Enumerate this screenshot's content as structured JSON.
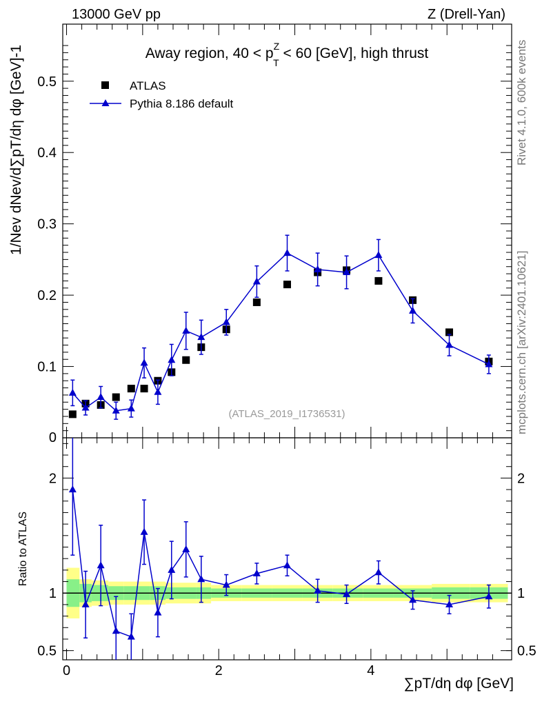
{
  "header": {
    "left": "13000 GeV pp",
    "right": "Z (Drell-Yan)"
  },
  "side_labels": {
    "rivet": "Rivet 4.1.0,  600k events",
    "mcplots": "mcplots.cern.ch [arXiv:2401.10621]"
  },
  "chart_data": [
    {
      "type": "scatter",
      "panel": "main",
      "title": "Away region, 40 < pTZ < 60 [GeV], high thrust",
      "title_parts": {
        "a": "Away region, 40 < p",
        "sup": "Z",
        "sub": "T",
        "b": " < 60 [GeV], high thrust"
      },
      "ylabel": "1/Nev dNev/d∑pT/dη dφ  [GeV]-1",
      "watermark": "(ATLAS_2019_I1736531)",
      "xlim": [
        -0.05,
        5.85
      ],
      "ylim": [
        0.0,
        0.58
      ],
      "yticks": [
        0.1,
        0.2,
        0.3,
        0.4,
        0.5
      ],
      "ytick_labels": [
        "0.1",
        "0.2",
        "0.3",
        "0.4",
        "0.5"
      ],
      "ytick_partial_label": "0",
      "legend": [
        {
          "name": "ATLAS",
          "marker": "square",
          "color": "#000000"
        },
        {
          "name": "Pythia 8.186 default",
          "marker": "triangle",
          "color": "#0000cc"
        }
      ],
      "series": [
        {
          "name": "ATLAS",
          "x": [
            0.08,
            0.25,
            0.45,
            0.65,
            0.85,
            1.02,
            1.2,
            1.38,
            1.57,
            1.77,
            2.1,
            2.5,
            2.9,
            3.3,
            3.68,
            4.1,
            4.55,
            5.03,
            5.55
          ],
          "values": [
            0.033,
            0.048,
            0.046,
            0.057,
            0.069,
            0.069,
            0.08,
            0.092,
            0.109,
            0.127,
            0.152,
            0.19,
            0.215,
            0.232,
            0.235,
            0.22,
            0.193,
            0.148,
            0.107
          ]
        },
        {
          "name": "Pythia 8.186 default",
          "x": [
            0.08,
            0.25,
            0.45,
            0.65,
            0.85,
            1.02,
            1.2,
            1.38,
            1.57,
            1.77,
            2.1,
            2.5,
            2.9,
            3.3,
            3.68,
            4.1,
            4.55,
            5.03,
            5.55
          ],
          "values": [
            0.063,
            0.042,
            0.057,
            0.038,
            0.041,
            0.105,
            0.064,
            0.109,
            0.15,
            0.141,
            0.162,
            0.219,
            0.259,
            0.236,
            0.232,
            0.256,
            0.178,
            0.13,
            0.103
          ],
          "errors": [
            0.018,
            0.01,
            0.015,
            0.012,
            0.012,
            0.021,
            0.017,
            0.022,
            0.026,
            0.024,
            0.018,
            0.022,
            0.025,
            0.023,
            0.023,
            0.022,
            0.017,
            0.015,
            0.013
          ]
        }
      ]
    },
    {
      "type": "line",
      "panel": "ratio",
      "ylabel": "Ratio to ATLAS",
      "xlabel": "∑pT/dη dφ [GeV]",
      "xlim": [
        -0.05,
        5.85
      ],
      "ylim": [
        0.42,
        2.35
      ],
      "xticks": [
        0,
        2,
        4
      ],
      "xtick_labels": [
        "0",
        "2",
        "4"
      ],
      "yticks": [
        0.5,
        1,
        2
      ],
      "ytick_labels": [
        "0.5",
        "1",
        "2"
      ],
      "x": [
        0.08,
        0.25,
        0.45,
        0.65,
        0.85,
        1.02,
        1.2,
        1.38,
        1.57,
        1.77,
        2.1,
        2.5,
        2.9,
        3.3,
        3.68,
        4.1,
        4.55,
        5.03,
        5.55
      ],
      "ratio": [
        1.9,
        0.9,
        1.24,
        0.67,
        0.62,
        1.53,
        0.83,
        1.2,
        1.38,
        1.12,
        1.07,
        1.17,
        1.24,
        1.02,
        0.99,
        1.18,
        0.94,
        0.9,
        0.97
      ],
      "ratio_err": [
        0.57,
        0.29,
        0.35,
        0.3,
        0.2,
        0.28,
        0.21,
        0.25,
        0.24,
        0.2,
        0.09,
        0.09,
        0.09,
        0.1,
        0.08,
        0.1,
        0.08,
        0.08,
        0.1
      ],
      "bands": {
        "edges": [
          0.0,
          0.17,
          0.33,
          0.55,
          0.75,
          0.95,
          1.1,
          1.3,
          1.5,
          1.7,
          1.9,
          2.3,
          2.7,
          3.1,
          3.5,
          3.9,
          4.3,
          4.8,
          5.3,
          5.8
        ],
        "stat": [
          0.12,
          0.08,
          0.07,
          0.06,
          0.06,
          0.06,
          0.06,
          0.05,
          0.05,
          0.05,
          0.04,
          0.04,
          0.04,
          0.04,
          0.04,
          0.04,
          0.04,
          0.05,
          0.05
        ],
        "total": [
          0.22,
          0.12,
          0.11,
          0.1,
          0.1,
          0.1,
          0.1,
          0.09,
          0.09,
          0.09,
          0.07,
          0.07,
          0.07,
          0.07,
          0.07,
          0.07,
          0.07,
          0.08,
          0.08
        ],
        "stat_color": "#88f088",
        "total_color": "#ffff88"
      }
    }
  ]
}
